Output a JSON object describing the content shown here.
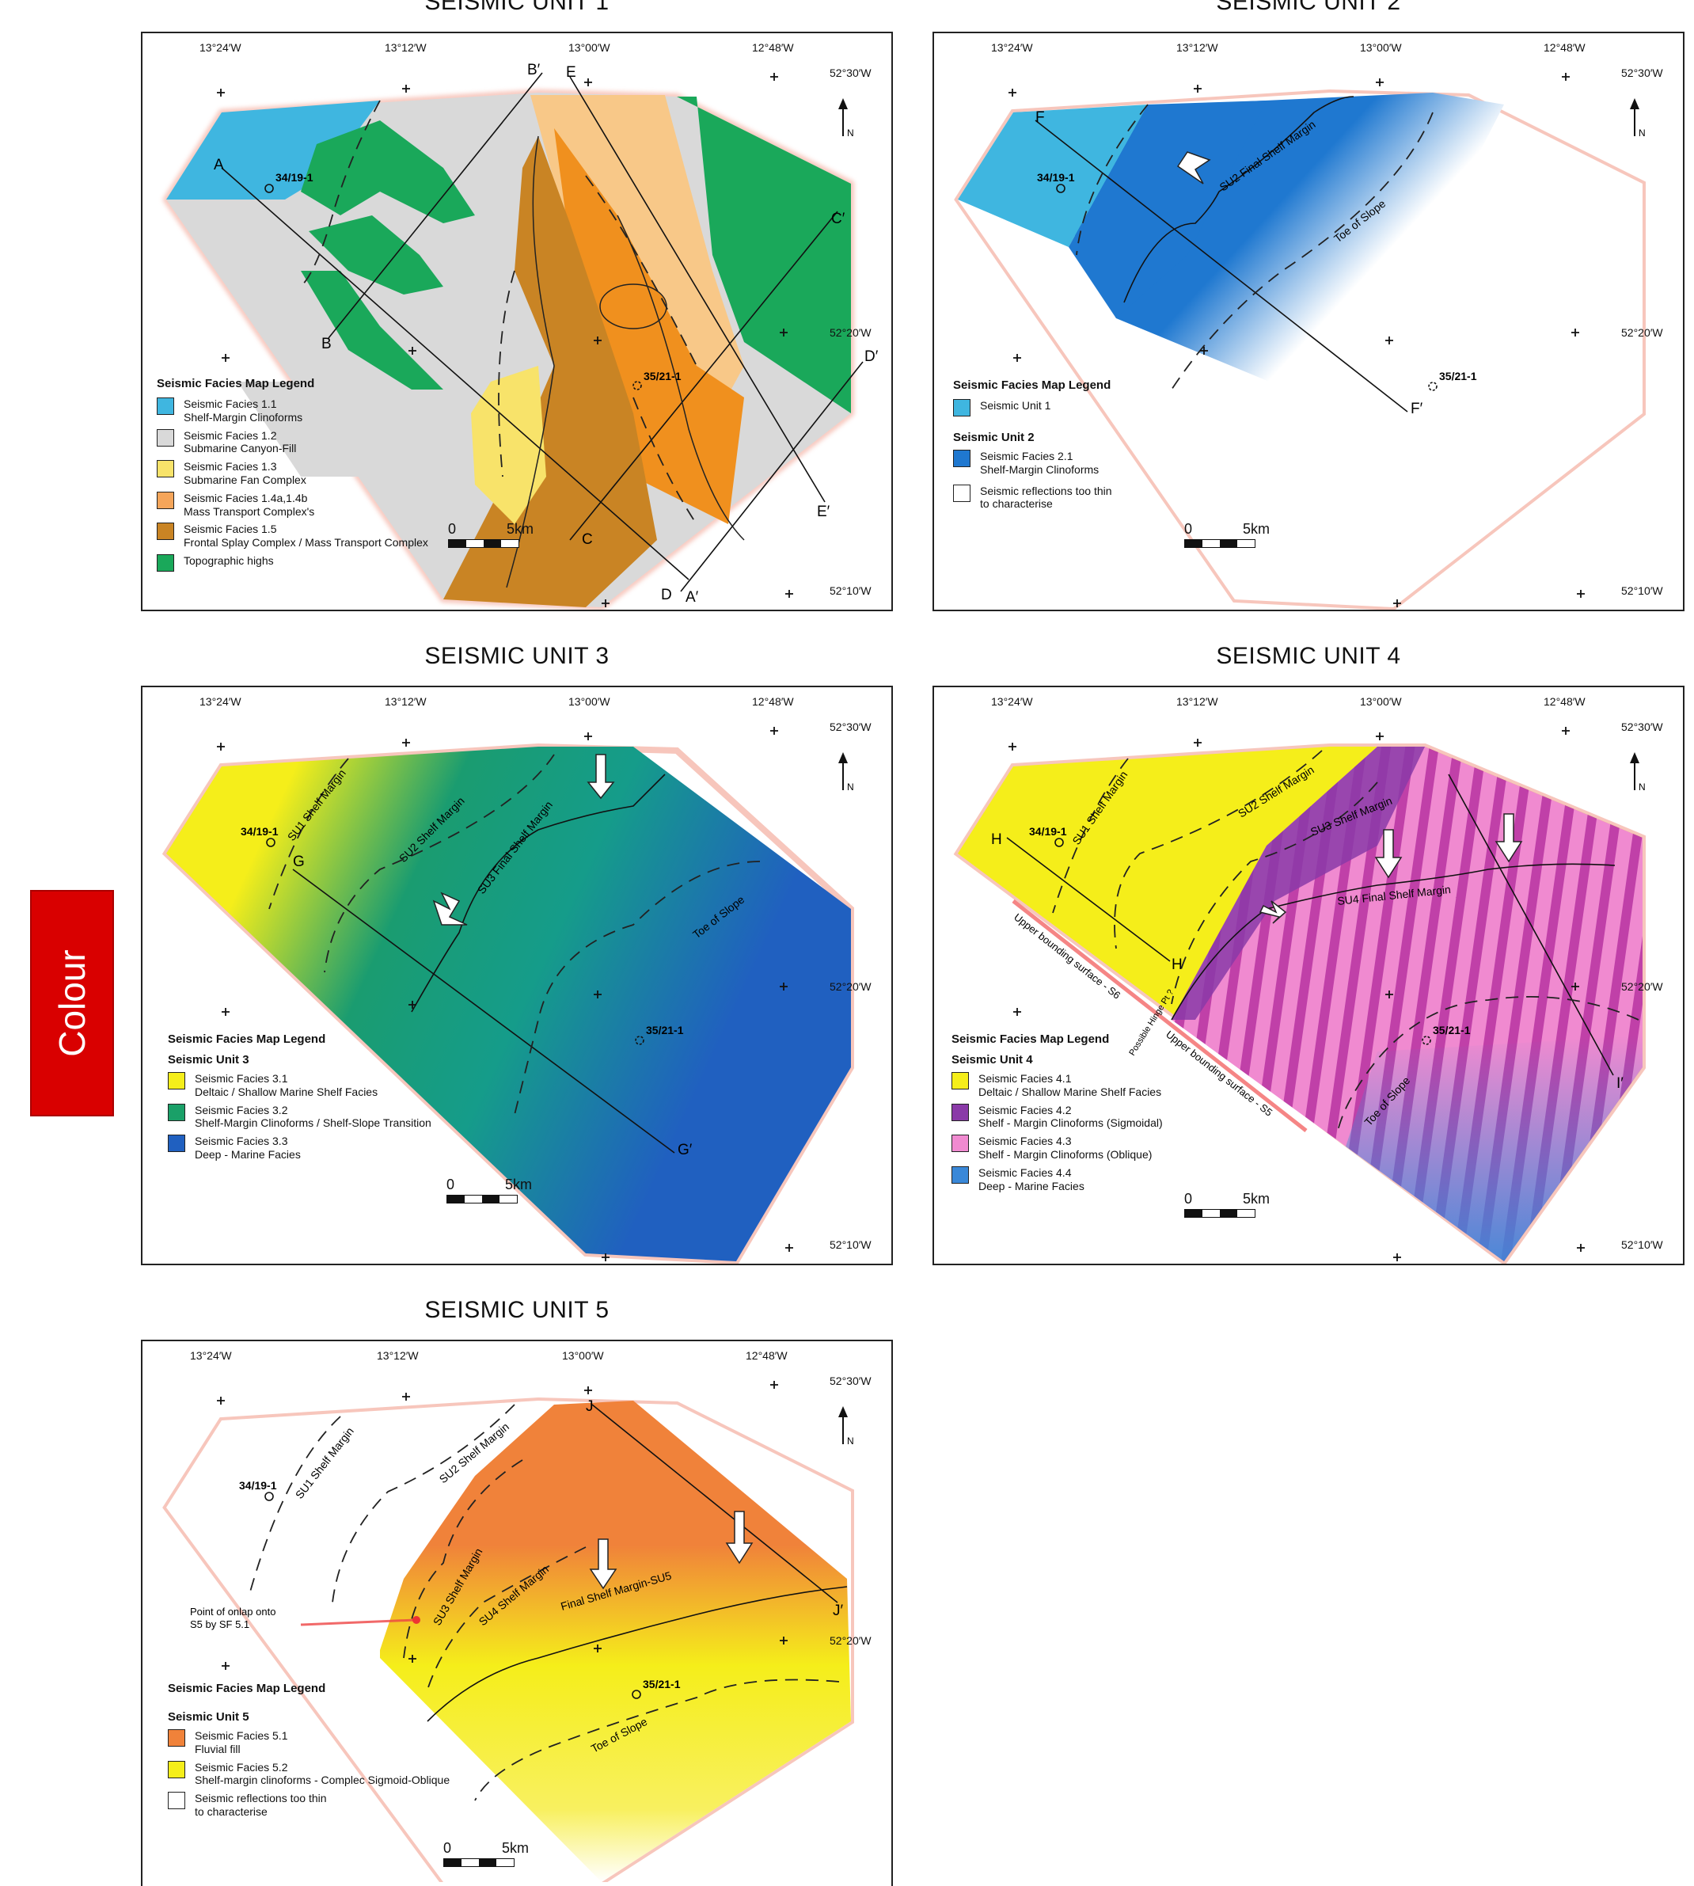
{
  "side_tab": "Colour",
  "panels": [
    {
      "title": "SEISMIC UNIT 1",
      "lon_labels": [
        "13°24′W",
        "13°12′W",
        "13°00′W",
        "12°48′W"
      ],
      "lat_labels": [
        "52°30′W",
        "52°20′W",
        "52°10′W"
      ],
      "wells": [
        "34/19-1",
        "35/21-1"
      ],
      "section_labels": [
        "A",
        "A′",
        "B",
        "B′",
        "C",
        "C′",
        "D",
        "D′",
        "E",
        "E′"
      ],
      "legend": {
        "heading": "Seismic Facies Map Legend",
        "items": [
          {
            "l1": "Seismic Facies 1.1",
            "l2": "Shelf-Margin Clinoforms",
            "color": "#3fb6e0"
          },
          {
            "l1": "Seismic Facies 1.2",
            "l2": "Submarine Canyon-Fill",
            "color": "#d9d9d9"
          },
          {
            "l1": "Seismic Facies 1.3",
            "l2": "Submarine Fan Complex",
            "color": "#f8e36a"
          },
          {
            "l1": "Seismic Facies 1.4a,1.4b",
            "l2": "Mass Transport Complex's",
            "color": "#f5a55a"
          },
          {
            "l1": "Seismic Facies 1.5",
            "l2": "Frontal Splay Complex / Mass Transport Complex",
            "color": "#c98424"
          },
          {
            "l1": "Topographic highs",
            "l2": "",
            "color": "#1aa85a"
          }
        ]
      },
      "scale": {
        "zero": "0",
        "dist": "5km"
      }
    },
    {
      "title": "SEISMIC UNIT 2",
      "lon_labels": [
        "13°24′W",
        "13°12′W",
        "13°00′W",
        "12°48′W"
      ],
      "lat_labels": [
        "52°30′W",
        "52°20′W",
        "52°10′W"
      ],
      "wells": [
        "34/19-1",
        "35/21-1"
      ],
      "section_labels": [
        "F",
        "F′"
      ],
      "annotations": [
        "SU2 Final Shelf Margin",
        "Toe of Slope"
      ],
      "legend": {
        "heading": "Seismic Facies Map Legend",
        "items": [
          {
            "l1": "Seismic Unit 1",
            "l2": "",
            "color": "#3fb6e0"
          }
        ],
        "sub": "Seismic Unit 2",
        "items2": [
          {
            "l1": "Seismic Facies 2.1",
            "l2": "Shelf-Margin Clinoforms",
            "color": "#1f78d0"
          },
          {
            "l1": "Seismic reflections too thin",
            "l2": "to characterise",
            "color": "#ffffff"
          }
        ]
      },
      "scale": {
        "zero": "0",
        "dist": "5km"
      }
    },
    {
      "title": "SEISMIC UNIT 3",
      "lon_labels": [
        "13°24′W",
        "13°12′W",
        "13°00′W",
        "12°48′W"
      ],
      "lat_labels": [
        "52°30′W",
        "52°20′W",
        "52°10′W"
      ],
      "wells": [
        "34/19-1",
        "35/21-1"
      ],
      "section_labels": [
        "G",
        "G′"
      ],
      "annotations": [
        "SU1 Shelf Margin",
        "SU2 Shelf Margin",
        "SU3 Final Shelf Margin",
        "Toe of Slope"
      ],
      "legend": {
        "heading": "Seismic Facies Map Legend",
        "sub": "Seismic Unit 3",
        "items2": [
          {
            "l1": "Seismic Facies 3.1",
            "l2": "Deltaic / Shallow Marine Shelf Facies",
            "color": "#f5ee1a"
          },
          {
            "l1": "Seismic Facies 3.2",
            "l2": "Shelf-Margin Clinoforms / Shelf-Slope Transition",
            "color": "#1aa068"
          },
          {
            "l1": "Seismic Facies 3.3",
            "l2": "Deep - Marine Facies",
            "color": "#2060c0"
          }
        ]
      },
      "scale": {
        "zero": "0",
        "dist": "5km"
      }
    },
    {
      "title": "SEISMIC UNIT 4",
      "lon_labels": [
        "13°24′W",
        "13°12′W",
        "13°00′W",
        "12°48′W"
      ],
      "lat_labels": [
        "52°30′W",
        "52°20′W",
        "52°10′W"
      ],
      "wells": [
        "34/19-1",
        "35/21-1"
      ],
      "section_labels": [
        "H",
        "H",
        "I′"
      ],
      "annotations": [
        "SU1 Shelf Margin",
        "SU2 Shelf Margin",
        "SU3 Shelf Margin",
        "SU4 Final Shelf Margin",
        "Toe of Slope",
        "Upper bounding surface - S6",
        "Upper bounding surface - S5",
        "Possible Hinge Pt ?"
      ],
      "legend": {
        "heading": "Seismic Facies Map Legend",
        "sub": "Seismic Unit 4",
        "items2": [
          {
            "l1": "Seismic Facies 4.1",
            "l2": "Deltaic / Shallow Marine Shelf Facies",
            "color": "#f5ee1a"
          },
          {
            "l1": "Seismic Facies 4.2",
            "l2": "Shelf - Margin Clinoforms (Sigmoidal)",
            "color": "#8a3aa8"
          },
          {
            "l1": "Seismic Facies 4.3",
            "l2": "Shelf - Margin Clinoforms (Oblique)",
            "color": "#f08ad0"
          },
          {
            "l1": "Seismic Facies 4.4",
            "l2": "Deep - Marine Facies",
            "color": "#3a88d8"
          }
        ]
      },
      "scale": {
        "zero": "0",
        "dist": "5km"
      }
    },
    {
      "title": "SEISMIC UNIT 5",
      "lon_labels": [
        "13°24′W",
        "13°12′W",
        "13°00′W",
        "12°48′W"
      ],
      "lat_labels": [
        "52°30′W",
        "52°20′W"
      ],
      "wells": [
        "34/19-1",
        "35/21-1"
      ],
      "section_labels": [
        "J",
        "J′"
      ],
      "annotations": [
        "SU1 Shelf Margin",
        "SU2 Shelf Margin",
        "SU3 Shelf Margin",
        "SU4 Shelf Margin",
        "Final Shelf Margin-SU5",
        "Toe of Slope"
      ],
      "callout": {
        "l1": "Point of onlap onto",
        "l2": "S5 by SF 5.1"
      },
      "legend": {
        "heading": "Seismic Facies Map Legend",
        "sub": "Seismic Unit 5",
        "items2": [
          {
            "l1": "Seismic Facies 5.1",
            "l2": "Fluvial fill",
            "color": "#f0823a"
          },
          {
            "l1": "Seismic Facies 5.2",
            "l2": "Shelf-margin clinoforms - Complec Sigmoid-Oblique",
            "color": "#f5ee1a"
          },
          {
            "l1": "Seismic reflections too thin",
            "l2": "to characterise",
            "color": "#ffffff"
          }
        ]
      },
      "scale": {
        "zero": "0",
        "dist": "5km"
      }
    }
  ],
  "north_label": "N"
}
